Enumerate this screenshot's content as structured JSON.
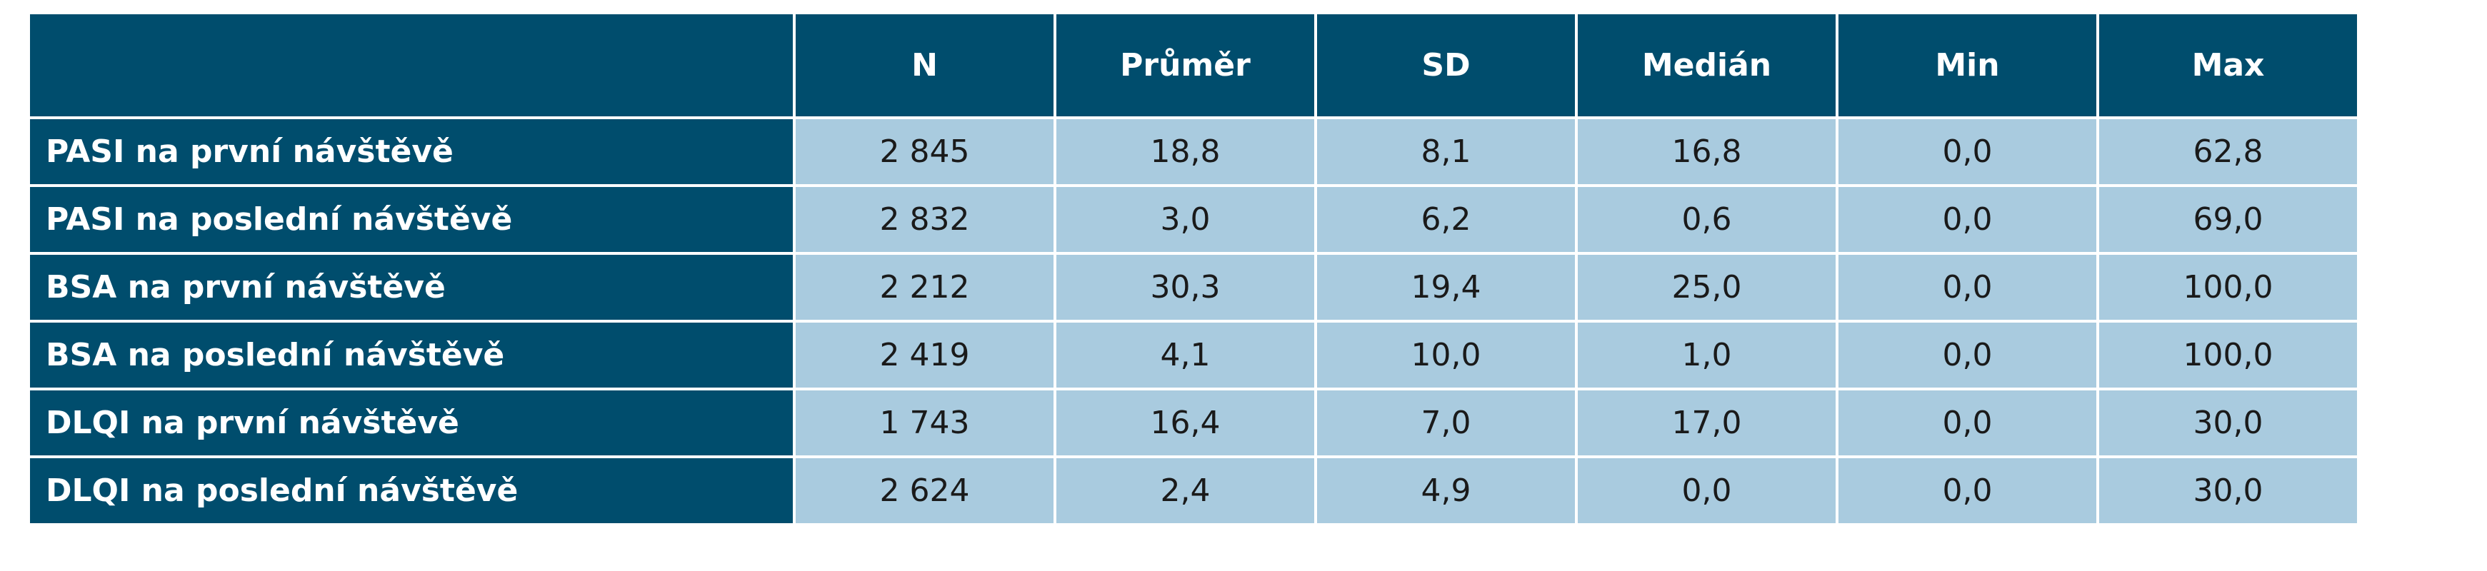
{
  "table": {
    "columns": [
      "N",
      "Průměr",
      "SD",
      "Medián",
      "Min",
      "Max"
    ],
    "rows": [
      [
        "PASI na první návštěvě",
        "2 845",
        "18,8",
        "8,1",
        "16,8",
        "0,0",
        "62,8"
      ],
      [
        "PASI na poslední návštěvě",
        "2 832",
        "3,0",
        "6,2",
        "0,6",
        "0,0",
        "69,0"
      ],
      [
        "BSA na první návštěvě",
        "2 212",
        "30,3",
        "19,4",
        "25,0",
        "0,0",
        "100,0"
      ],
      [
        "BSA na poslední návštěvě",
        "2 419",
        "4,1",
        "10,0",
        "1,0",
        "0,0",
        "100,0"
      ],
      [
        "DLQI na první návštěvě",
        "1 743",
        "16,4",
        "7,0",
        "17,0",
        "0,0",
        "30,0"
      ],
      [
        "DLQI na poslední návštěvě",
        "2 624",
        "2,4",
        "4,9",
        "0,0",
        "0,0",
        "30,0"
      ]
    ]
  }
}
